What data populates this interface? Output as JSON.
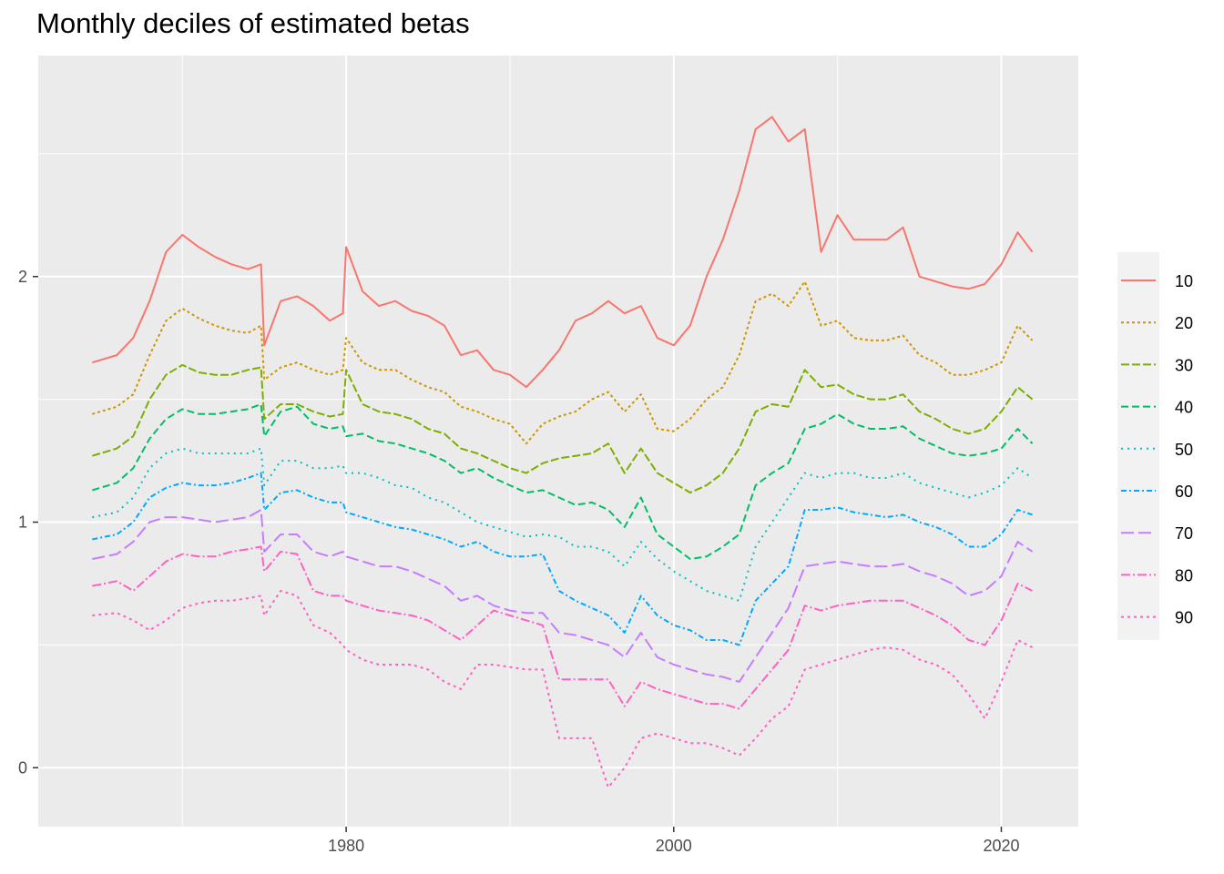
{
  "chart_data": {
    "type": "line",
    "title": "Monthly deciles of estimated betas",
    "xlabel": "",
    "ylabel": "",
    "xlim": [
      1961.2,
      2024.7
    ],
    "ylim": [
      -0.24,
      2.9
    ],
    "x_ticks": [
      1980,
      2000,
      2020
    ],
    "x_tick_labels": [
      "1980",
      "2000",
      "2020"
    ],
    "y_ticks": [
      0,
      1,
      2
    ],
    "y_tick_labels": [
      "0",
      "1",
      "2"
    ],
    "grid": true,
    "legend_position": "right",
    "x": [
      1964.5,
      1966,
      1967,
      1968,
      1969,
      1970,
      1971,
      1972,
      1973,
      1974,
      1974.8,
      1975,
      1976,
      1977,
      1978,
      1979,
      1979.8,
      1980,
      1981,
      1982,
      1983,
      1984,
      1985,
      1986,
      1987,
      1988,
      1989,
      1990,
      1991,
      1992,
      1993,
      1994,
      1995,
      1996,
      1997,
      1998,
      1999,
      2000,
      2001,
      2002,
      2003,
      2004,
      2005,
      2006,
      2007,
      2008,
      2009,
      2010,
      2011,
      2012,
      2013,
      2014,
      2015,
      2016,
      2017,
      2018,
      2019,
      2020,
      2021,
      2021.9
    ],
    "series": [
      {
        "name": "10",
        "color": "#F8766D",
        "dash": "",
        "values": [
          1.65,
          1.68,
          1.75,
          1.9,
          2.1,
          2.17,
          2.12,
          2.08,
          2.05,
          2.03,
          2.05,
          1.72,
          1.9,
          1.92,
          1.88,
          1.82,
          1.85,
          2.12,
          1.94,
          1.88,
          1.9,
          1.86,
          1.84,
          1.8,
          1.68,
          1.7,
          1.62,
          1.6,
          1.55,
          1.62,
          1.7,
          1.82,
          1.85,
          1.9,
          1.85,
          1.88,
          1.75,
          1.72,
          1.8,
          2.0,
          2.15,
          2.35,
          2.6,
          2.65,
          2.55,
          2.6,
          2.1,
          2.25,
          2.15,
          2.15,
          2.15,
          2.2,
          2.0,
          1.98,
          1.96,
          1.95,
          1.97,
          2.05,
          2.18,
          2.1
        ]
      },
      {
        "name": "20",
        "color": "#CD9600",
        "dash": "3,3",
        "values": [
          1.44,
          1.47,
          1.52,
          1.68,
          1.82,
          1.87,
          1.83,
          1.8,
          1.78,
          1.77,
          1.8,
          1.58,
          1.63,
          1.65,
          1.62,
          1.6,
          1.62,
          1.75,
          1.65,
          1.62,
          1.62,
          1.58,
          1.55,
          1.53,
          1.47,
          1.45,
          1.42,
          1.4,
          1.32,
          1.4,
          1.43,
          1.45,
          1.5,
          1.53,
          1.45,
          1.52,
          1.38,
          1.37,
          1.42,
          1.5,
          1.55,
          1.68,
          1.9,
          1.93,
          1.88,
          1.98,
          1.8,
          1.82,
          1.75,
          1.74,
          1.74,
          1.76,
          1.68,
          1.65,
          1.6,
          1.6,
          1.62,
          1.65,
          1.8,
          1.74
        ]
      },
      {
        "name": "30",
        "color": "#7CAE00",
        "dash": "9,3",
        "values": [
          1.27,
          1.3,
          1.35,
          1.5,
          1.6,
          1.64,
          1.61,
          1.6,
          1.6,
          1.62,
          1.63,
          1.42,
          1.48,
          1.48,
          1.45,
          1.43,
          1.44,
          1.62,
          1.48,
          1.45,
          1.44,
          1.42,
          1.38,
          1.36,
          1.3,
          1.28,
          1.25,
          1.22,
          1.2,
          1.24,
          1.26,
          1.27,
          1.28,
          1.32,
          1.2,
          1.3,
          1.2,
          1.16,
          1.12,
          1.15,
          1.2,
          1.3,
          1.45,
          1.48,
          1.47,
          1.62,
          1.55,
          1.56,
          1.52,
          1.5,
          1.5,
          1.52,
          1.45,
          1.42,
          1.38,
          1.36,
          1.38,
          1.45,
          1.55,
          1.5
        ]
      },
      {
        "name": "40",
        "color": "#00BE67",
        "dash": "8,4",
        "values": [
          1.13,
          1.16,
          1.22,
          1.34,
          1.42,
          1.46,
          1.44,
          1.44,
          1.45,
          1.46,
          1.48,
          1.35,
          1.45,
          1.47,
          1.4,
          1.38,
          1.39,
          1.35,
          1.36,
          1.33,
          1.32,
          1.3,
          1.28,
          1.25,
          1.2,
          1.22,
          1.18,
          1.15,
          1.12,
          1.13,
          1.1,
          1.07,
          1.08,
          1.05,
          0.98,
          1.1,
          0.95,
          0.9,
          0.85,
          0.86,
          0.9,
          0.95,
          1.15,
          1.2,
          1.24,
          1.38,
          1.4,
          1.44,
          1.4,
          1.38,
          1.38,
          1.39,
          1.34,
          1.31,
          1.28,
          1.27,
          1.28,
          1.3,
          1.38,
          1.32
        ]
      },
      {
        "name": "50",
        "color": "#00BFC4",
        "dash": "2,5",
        "values": [
          1.02,
          1.04,
          1.1,
          1.22,
          1.28,
          1.3,
          1.28,
          1.28,
          1.28,
          1.28,
          1.3,
          1.15,
          1.25,
          1.25,
          1.22,
          1.22,
          1.23,
          1.2,
          1.2,
          1.18,
          1.15,
          1.14,
          1.1,
          1.08,
          1.04,
          1.0,
          0.98,
          0.96,
          0.94,
          0.95,
          0.94,
          0.9,
          0.9,
          0.88,
          0.82,
          0.92,
          0.85,
          0.8,
          0.76,
          0.72,
          0.7,
          0.68,
          0.9,
          1.0,
          1.1,
          1.2,
          1.18,
          1.2,
          1.2,
          1.18,
          1.18,
          1.2,
          1.16,
          1.14,
          1.12,
          1.1,
          1.12,
          1.15,
          1.22,
          1.18
        ]
      },
      {
        "name": "60",
        "color": "#00A9FF",
        "dash": "6,3,2,3",
        "values": [
          0.93,
          0.95,
          1.0,
          1.1,
          1.14,
          1.16,
          1.15,
          1.15,
          1.16,
          1.18,
          1.2,
          1.05,
          1.12,
          1.13,
          1.1,
          1.08,
          1.08,
          1.04,
          1.02,
          1.0,
          0.98,
          0.97,
          0.95,
          0.93,
          0.9,
          0.92,
          0.88,
          0.86,
          0.86,
          0.87,
          0.72,
          0.68,
          0.65,
          0.62,
          0.55,
          0.7,
          0.62,
          0.58,
          0.56,
          0.52,
          0.52,
          0.5,
          0.68,
          0.75,
          0.82,
          1.05,
          1.05,
          1.06,
          1.04,
          1.03,
          1.02,
          1.03,
          1.0,
          0.98,
          0.95,
          0.9,
          0.9,
          0.95,
          1.05,
          1.03
        ]
      },
      {
        "name": "70",
        "color": "#C77CFF",
        "dash": "14,5",
        "values": [
          0.85,
          0.87,
          0.92,
          1.0,
          1.02,
          1.02,
          1.01,
          1.0,
          1.01,
          1.02,
          1.05,
          0.88,
          0.95,
          0.95,
          0.88,
          0.86,
          0.88,
          0.86,
          0.84,
          0.82,
          0.82,
          0.8,
          0.77,
          0.74,
          0.68,
          0.7,
          0.66,
          0.64,
          0.63,
          0.63,
          0.55,
          0.54,
          0.52,
          0.5,
          0.45,
          0.55,
          0.45,
          0.42,
          0.4,
          0.38,
          0.37,
          0.35,
          0.45,
          0.55,
          0.65,
          0.82,
          0.83,
          0.84,
          0.83,
          0.82,
          0.82,
          0.83,
          0.8,
          0.78,
          0.75,
          0.7,
          0.72,
          0.78,
          0.92,
          0.88
        ]
      },
      {
        "name": "80",
        "color": "#FF61C3",
        "dash": "10,3,2,3",
        "values": [
          0.74,
          0.76,
          0.72,
          0.78,
          0.84,
          0.87,
          0.86,
          0.86,
          0.88,
          0.89,
          0.9,
          0.8,
          0.88,
          0.87,
          0.72,
          0.7,
          0.7,
          0.68,
          0.66,
          0.64,
          0.63,
          0.62,
          0.6,
          0.56,
          0.52,
          0.58,
          0.64,
          0.62,
          0.6,
          0.58,
          0.36,
          0.36,
          0.36,
          0.36,
          0.25,
          0.35,
          0.32,
          0.3,
          0.28,
          0.26,
          0.26,
          0.24,
          0.32,
          0.4,
          0.48,
          0.66,
          0.64,
          0.66,
          0.67,
          0.68,
          0.68,
          0.68,
          0.65,
          0.62,
          0.58,
          0.52,
          0.5,
          0.6,
          0.75,
          0.72
        ]
      },
      {
        "name": "90",
        "color": "#FF61C3",
        "dash": "3,4",
        "values": [
          0.62,
          0.63,
          0.6,
          0.56,
          0.6,
          0.65,
          0.67,
          0.68,
          0.68,
          0.69,
          0.7,
          0.62,
          0.72,
          0.7,
          0.58,
          0.55,
          0.5,
          0.48,
          0.44,
          0.42,
          0.42,
          0.42,
          0.4,
          0.35,
          0.32,
          0.42,
          0.42,
          0.41,
          0.4,
          0.4,
          0.12,
          0.12,
          0.12,
          -0.08,
          0.0,
          0.12,
          0.14,
          0.12,
          0.1,
          0.1,
          0.08,
          0.05,
          0.12,
          0.2,
          0.25,
          0.4,
          0.42,
          0.44,
          0.46,
          0.48,
          0.49,
          0.48,
          0.44,
          0.42,
          0.38,
          0.3,
          0.2,
          0.35,
          0.52,
          0.49
        ]
      }
    ]
  }
}
